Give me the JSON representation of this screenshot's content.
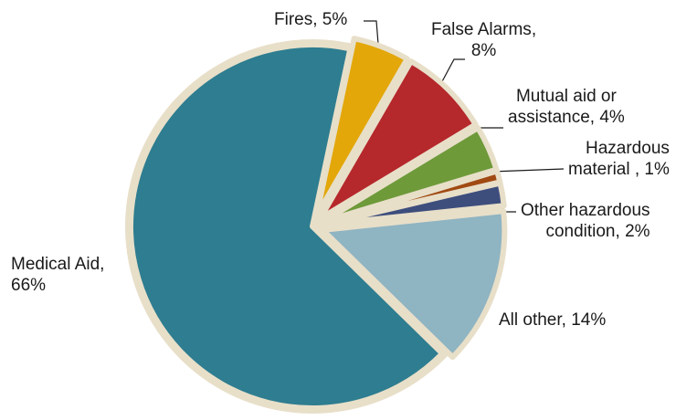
{
  "chart_data": {
    "type": "pie",
    "categories": [
      "Fires",
      "False Alarms",
      "Mutual aid or assistance",
      "Hazardous material ",
      "Other hazardous condition",
      "All other",
      "Medical Aid"
    ],
    "values": [
      5,
      8,
      4,
      1,
      2,
      14,
      66
    ],
    "colors": [
      "#E3A70A",
      "#B5282B",
      "#6E9A3A",
      "#A04A12",
      "#3D4E7D",
      "#8FB4C2",
      "#2E7D90"
    ],
    "slice_border_color": "#E8DFC9",
    "legend": "none",
    "labels": [
      {
        "name": "Fires",
        "pct": "5%"
      },
      {
        "name": "False Alarms",
        "pct": "8%"
      },
      {
        "name": "Mutual aid or assistance",
        "pct": "4%"
      },
      {
        "name": "Hazardous material ",
        "pct": "1%"
      },
      {
        "name": "Other hazardous condition",
        "pct": "2%"
      },
      {
        "name": "All other",
        "pct": "14%"
      },
      {
        "name": "Medical Aid",
        "pct": "66%"
      }
    ]
  }
}
